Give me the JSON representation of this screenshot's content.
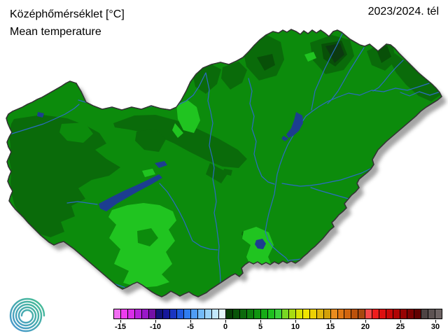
{
  "header": {
    "title_hu": "Középhőmérséklet [°C]",
    "title_en": "Mean temperature",
    "period": "2023/2024. tél"
  },
  "map": {
    "region": "Hungary",
    "colors": {
      "base": "#0c8b0c",
      "dark": "#0a6b0a",
      "darker": "#085008",
      "darkest": "#0c3a10",
      "light": "#20c420",
      "lake": "#1c3e90",
      "river": "#2b6cc4",
      "border": "#333333",
      "shadow": "#8f8f8f"
    }
  },
  "legend": {
    "min_value": -16,
    "max_value": 31,
    "tick_values": [
      -15,
      -10,
      -5,
      0,
      5,
      10,
      15,
      20,
      25,
      30
    ],
    "tick_labels": [
      "-15",
      "-10",
      "-5",
      "0",
      "5",
      "10",
      "15",
      "20",
      "25",
      "30"
    ],
    "cell_colors": [
      "#f26ef2",
      "#ee3cee",
      "#d92ee8",
      "#b822dc",
      "#9a18c8",
      "#7410a6",
      "#12127a",
      "#16169a",
      "#1a35c2",
      "#1f5ade",
      "#2f7df0",
      "#4f9cf5",
      "#73baf8",
      "#9bd3fa",
      "#c2e8fb",
      "#e4f8fb",
      "#073f07",
      "#095409",
      "#0c690c",
      "#0e7f0e",
      "#119511",
      "#15ab15",
      "#1fc01f",
      "#3bd23b",
      "#79d723",
      "#a8dc12",
      "#d8e303",
      "#f0e500",
      "#edd104",
      "#e0b60d",
      "#d3a009",
      "#ea8c1e",
      "#e07714",
      "#d2650e",
      "#bc520b",
      "#a8470e",
      "#f84848",
      "#ee1d1d",
      "#dd0f0f",
      "#c80808",
      "#b10404",
      "#970202",
      "#7c0101",
      "#620000",
      "#4d4343",
      "#5d5353",
      "#6e6464"
    ]
  },
  "logo": {
    "name": "hungaromet-spiral-logo",
    "color_start": "#4a95d2",
    "color_end": "#46c08f"
  }
}
